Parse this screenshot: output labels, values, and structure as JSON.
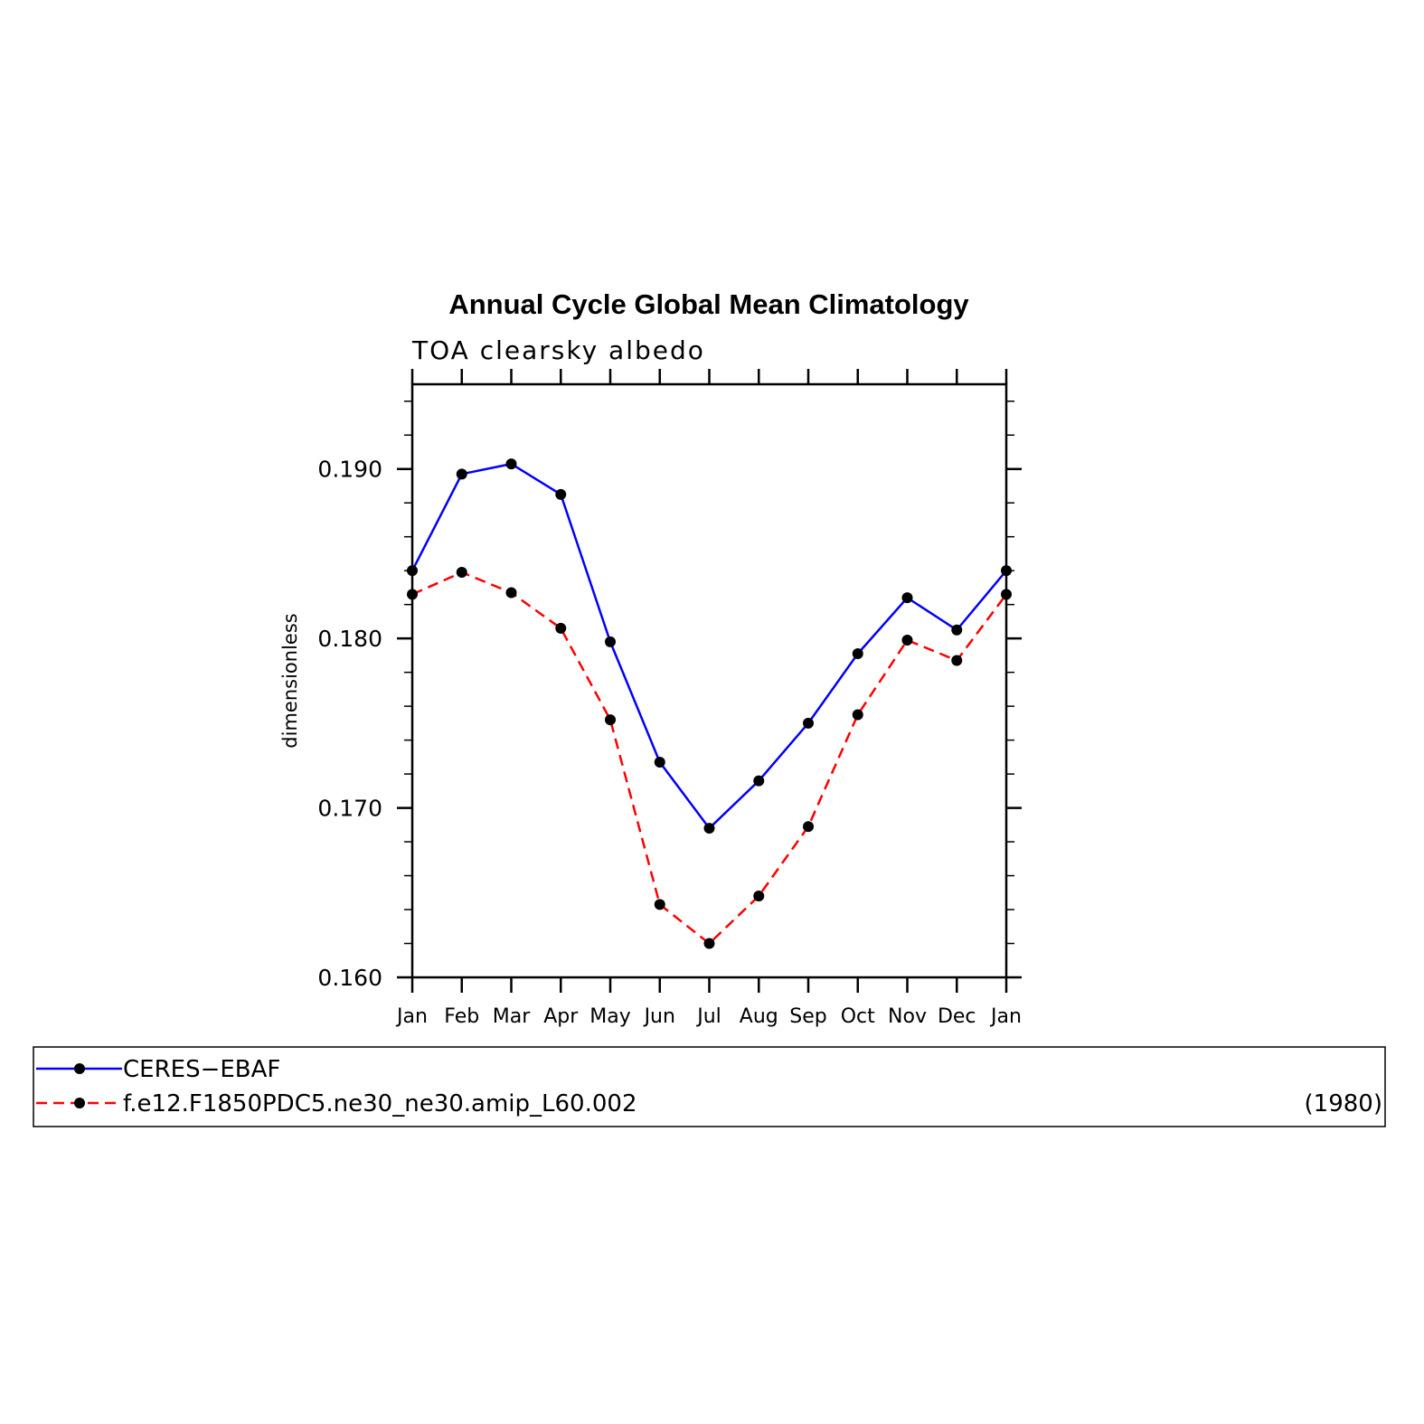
{
  "chart_data": {
    "type": "line",
    "title": "Annual Cycle Global Mean Climatology",
    "subtitle": "TOA clearsky albedo",
    "ylabel": "dimensionless",
    "xlabel": "",
    "categories": [
      "Jan",
      "Feb",
      "Mar",
      "Apr",
      "May",
      "Jun",
      "Jul",
      "Aug",
      "Sep",
      "Oct",
      "Nov",
      "Dec",
      "Jan"
    ],
    "ylim": [
      0.16,
      0.195
    ],
    "yticks": [
      "0.160",
      "0.170",
      "0.180",
      "0.190"
    ],
    "series": [
      {
        "name": "CERES−EBAF",
        "color": "#0000ff",
        "dash": "solid",
        "values": [
          0.184,
          0.1897,
          0.1903,
          0.1885,
          0.1798,
          0.1727,
          0.1688,
          0.1716,
          0.175,
          0.1791,
          0.1824,
          0.1805,
          0.184
        ]
      },
      {
        "name": "f.e12.F1850PDC5.ne30_ne30.amip_L60.002",
        "color": "#ff0000",
        "dash": "dashed",
        "values": [
          0.1826,
          0.1839,
          0.1827,
          0.1806,
          0.1752,
          0.1643,
          0.162,
          0.1648,
          0.1689,
          0.1755,
          0.1799,
          0.1787,
          0.1826
        ]
      }
    ],
    "legend_position": "bottom",
    "legend_note": "(1980)",
    "marker_color": "#000000",
    "grid": false
  }
}
